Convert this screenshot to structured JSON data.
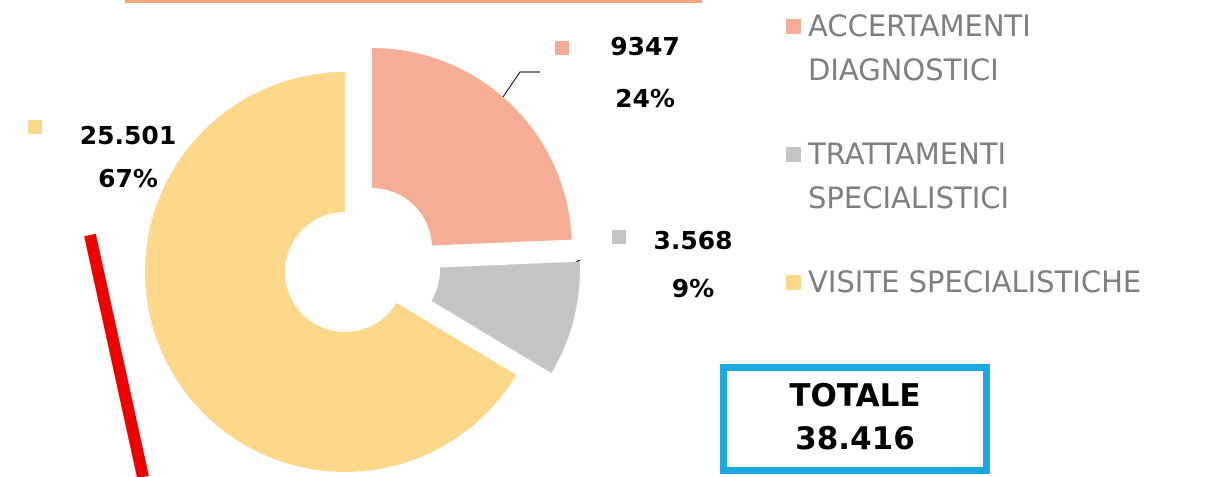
{
  "chart_data": {
    "type": "pie",
    "donut": true,
    "categories": [
      "ACCERTAMENTI DIAGNOSTICI",
      "TRATTAMENTI SPECIALISTICI",
      "VISITE SPECIALISTICHE"
    ],
    "values": [
      9347,
      3568,
      25501
    ],
    "value_labels": [
      "9347",
      "3.568",
      "25.501"
    ],
    "percents": [
      24,
      9,
      67
    ],
    "percent_labels": [
      "24%",
      "9%",
      "67%"
    ],
    "colors": [
      "#f5ad95",
      "#c4c4c4",
      "#fdd88a"
    ],
    "legend": "right",
    "total": {
      "label": "TOTALE",
      "value": 38416,
      "value_label": "38.416"
    }
  }
}
